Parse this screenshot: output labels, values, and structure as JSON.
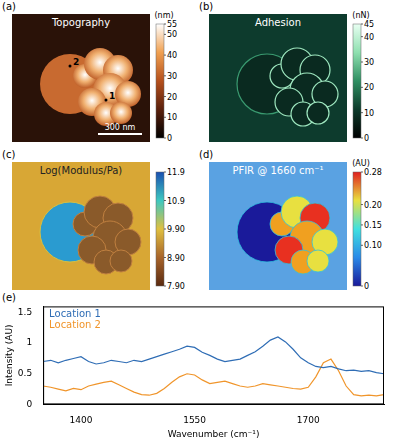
{
  "panels": [
    {
      "label": "(a)",
      "title": "Topography",
      "markers": [
        "1",
        "2"
      ],
      "scale_bar": "300 nm",
      "colorbar": {
        "unit": "(nm)",
        "range": [
          0,
          55
        ],
        "ticks": [
          0,
          10,
          20,
          30,
          40,
          50,
          55
        ]
      }
    },
    {
      "label": "(b)",
      "title": "Adhesion",
      "colorbar": {
        "unit": "(nN)",
        "range": [
          0,
          45
        ],
        "ticks": [
          0,
          10,
          20,
          30,
          40,
          45
        ]
      }
    },
    {
      "label": "(c)",
      "title": "Log(Modulus/Pa)",
      "colorbar": {
        "range": [
          7.9,
          11.9
        ],
        "ticks": [
          {
            "value": 7.9,
            "label": "7.90"
          },
          {
            "value": 8.9,
            "label": "8.90"
          },
          {
            "value": 9.9,
            "label": "9.90"
          },
          10.9,
          11.9
        ]
      }
    },
    {
      "label": "(d)",
      "title": "PFIR @ 1660 cm⁻¹",
      "colorbar": {
        "unit": "(AU)",
        "range": [
          0,
          0.28
        ],
        "ticks": [
          0,
          {
            "value": 0.1,
            "label": "0.10"
          },
          0.15,
          {
            "value": 0.2,
            "label": "0.20"
          },
          0.28
        ]
      }
    }
  ],
  "chart_data": {
    "type": "line",
    "panel_label": "(e)",
    "x_label": "Wavenumber (cm⁻¹)",
    "y_label": "Intensity (AU)",
    "x": [
      1350,
      1360,
      1370,
      1380,
      1390,
      1400,
      1410,
      1420,
      1430,
      1440,
      1450,
      1460,
      1470,
      1480,
      1490,
      1500,
      1510,
      1520,
      1530,
      1540,
      1550,
      1560,
      1570,
      1580,
      1590,
      1600,
      1610,
      1620,
      1630,
      1640,
      1650,
      1660,
      1670,
      1680,
      1690,
      1700,
      1710,
      1720,
      1730,
      1740,
      1750,
      1760,
      1770,
      1780,
      1790,
      1800
    ],
    "series": [
      {
        "name": "Location 1",
        "color": "#2f6db5",
        "values": [
          0.7,
          0.72,
          0.68,
          0.72,
          0.75,
          0.78,
          0.7,
          0.66,
          0.68,
          0.72,
          0.7,
          0.68,
          0.72,
          0.7,
          0.74,
          0.78,
          0.82,
          0.86,
          0.9,
          0.95,
          0.93,
          0.85,
          0.8,
          0.74,
          0.7,
          0.72,
          0.74,
          0.8,
          0.86,
          0.95,
          1.05,
          1.1,
          1.02,
          0.9,
          0.76,
          0.68,
          0.62,
          0.6,
          0.62,
          0.58,
          0.55,
          0.56,
          0.54,
          0.55,
          0.52,
          0.5
        ]
      },
      {
        "name": "Location 2",
        "color": "#f0952b",
        "values": [
          0.3,
          0.28,
          0.25,
          0.22,
          0.26,
          0.24,
          0.3,
          0.33,
          0.36,
          0.38,
          0.32,
          0.26,
          0.2,
          0.16,
          0.15,
          0.18,
          0.26,
          0.36,
          0.45,
          0.5,
          0.48,
          0.4,
          0.34,
          0.36,
          0.38,
          0.34,
          0.3,
          0.28,
          0.3,
          0.34,
          0.32,
          0.3,
          0.28,
          0.26,
          0.25,
          0.28,
          0.45,
          0.68,
          0.74,
          0.55,
          0.3,
          0.16,
          0.14,
          0.15,
          0.14,
          0.16
        ]
      }
    ],
    "xlim": [
      1350,
      1800
    ],
    "xticks": [
      1400,
      1550,
      1700
    ],
    "ylim": [
      0,
      1.6
    ],
    "yticks": [
      0,
      0.5,
      1,
      1.5
    ],
    "grid": false,
    "legend": "upper left"
  }
}
